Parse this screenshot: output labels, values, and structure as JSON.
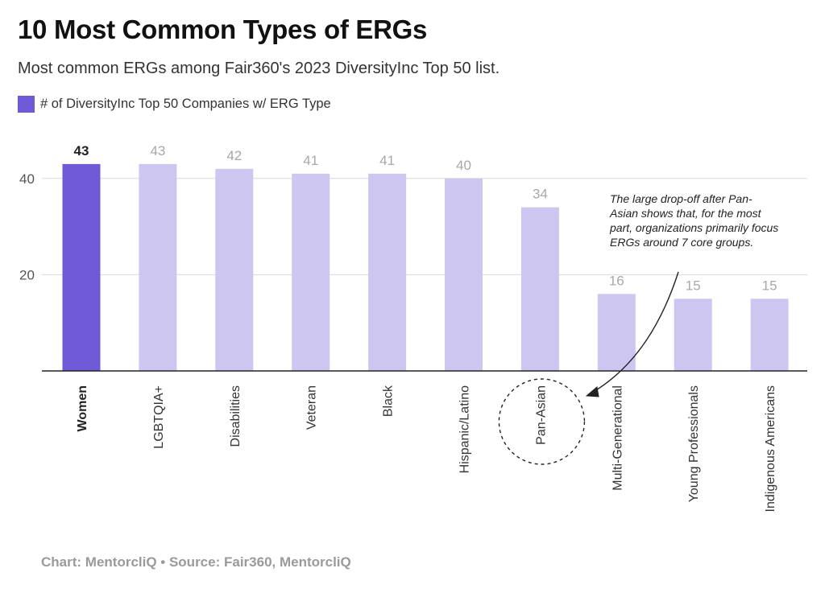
{
  "title": "10 Most Common Types of ERGs",
  "subtitle": "Most common ERGs among Fair360's 2023 DiversityInc Top 50 list.",
  "legend": {
    "label": "# of DiversityInc Top 50 Companies w/ ERG Type",
    "color": "#ccc6f0"
  },
  "footer": "Chart: MentorcliQ • Source: Fair360, MentorcliQ",
  "colors": {
    "highlight": "#7059d6",
    "bar": "#ccc6f0",
    "grid": "#d9d9d9",
    "axis": "#222222"
  },
  "chart_data": {
    "type": "bar",
    "categories": [
      "Women",
      "LGBTQIA+",
      "Disabilities",
      "Veteran",
      "Black",
      "Hispanic/Latino",
      "Pan-Asian",
      "Multi-Generational",
      "Young Professionals",
      "Indigenous Americans"
    ],
    "values": [
      43,
      43,
      42,
      41,
      41,
      40,
      34,
      16,
      15,
      15
    ],
    "highlight": "Women",
    "yticks": [
      20,
      40
    ],
    "ylim": [
      0,
      50
    ],
    "grid": true,
    "annotation": {
      "text": "The large drop-off after Pan-Asian shows that, for the most part, organizations primarily focus ERGs around 7 core groups.",
      "target": "Pan-Asian"
    }
  }
}
